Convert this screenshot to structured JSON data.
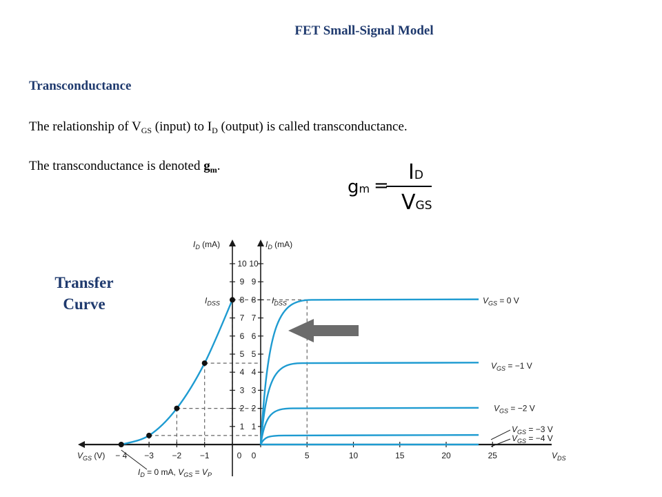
{
  "header": {
    "title": "FET Small-Signal Model"
  },
  "section": {
    "subtitle": "Transconductance"
  },
  "text": {
    "line1_a": "The relationship of V",
    "line1_sub1": "GS",
    "line1_b": " (input) to I",
    "line1_sub2": "D",
    "line1_c": " (output) is called transconductance.",
    "line2_a": "The transconductance is denoted ",
    "line2_bold": "g",
    "line2_sub": "m",
    "line2_end": "."
  },
  "formula": {
    "lhs_main": "g",
    "lhs_sub": "m",
    "eq": "=",
    "num_main": "I",
    "num_sub": "D",
    "den_main": "V",
    "den_sub": "GS"
  },
  "figure": {
    "label_line1": "Transfer",
    "label_line2": "Curve"
  },
  "chart_data": [
    {
      "type": "line",
      "name": "transfer",
      "x_axis_label": "V_GS (V)",
      "y_axis_label": "I_D (mA)",
      "x_ticks": [
        "− 4",
        "−3",
        "−2",
        "−1",
        "0"
      ],
      "y_ticks": [
        "1",
        "2",
        "3",
        "4",
        "5",
        "6",
        "7",
        "8",
        "9",
        "10"
      ],
      "xlim": [
        -4,
        0
      ],
      "ylim": [
        0,
        10
      ],
      "curve_points": [
        [
          -4,
          0
        ],
        [
          -3,
          0.5
        ],
        [
          -2,
          2
        ],
        [
          -1,
          4.5
        ],
        [
          0,
          8
        ]
      ],
      "marked_points": [
        [
          -4,
          0
        ],
        [
          -3,
          0.5
        ],
        [
          -2,
          2
        ],
        [
          -1,
          4.5
        ],
        [
          0,
          8
        ]
      ],
      "annotations": {
        "idss": "I_DSS",
        "pinchoff": "I_D = 0 mA, V_GS = V_P"
      }
    },
    {
      "type": "line",
      "name": "drain_characteristics",
      "x_axis_label": "V_DS",
      "y_axis_label": "I_D (mA)",
      "x_ticks": [
        "0",
        "5",
        "10",
        "15",
        "20",
        "25"
      ],
      "y_ticks": [
        "1",
        "2",
        "3",
        "4",
        "5",
        "6",
        "7",
        "8",
        "9",
        "10"
      ],
      "xlim": [
        0,
        25
      ],
      "ylim": [
        0,
        10
      ],
      "series": [
        {
          "label": "V_GS = 0 V",
          "saturation_current": 8
        },
        {
          "label": "V_GS = −1 V",
          "saturation_current": 4.5
        },
        {
          "label": "V_GS = −2 V",
          "saturation_current": 2
        },
        {
          "label": "V_GS = −3 V",
          "saturation_current": 0.5
        },
        {
          "label": "V_GS = −4 V",
          "saturation_current": 0
        }
      ],
      "annotations": {
        "idss": "I_DSS"
      }
    }
  ]
}
